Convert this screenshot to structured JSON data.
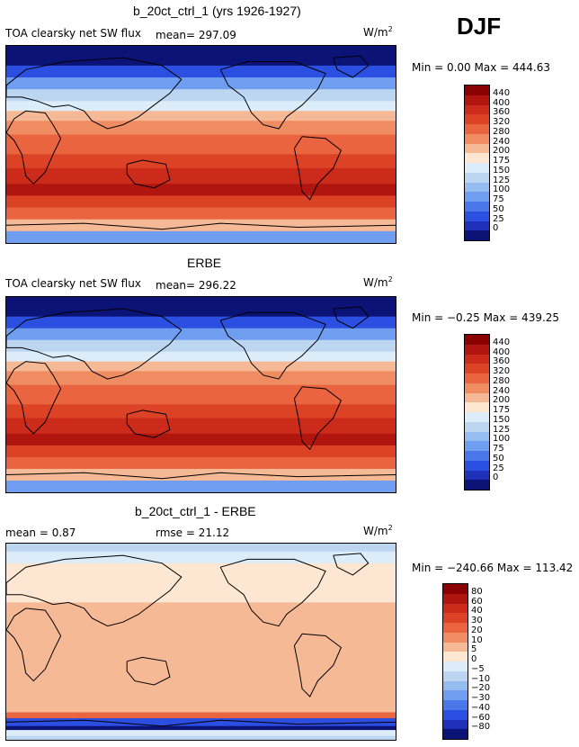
{
  "season": "DJF",
  "panels": [
    {
      "title": "b_20ct_ctrl_1 (yrs 1926-1927)",
      "variable": "TOA clearsky net SW flux",
      "mean_text": "mean= 297.09",
      "units_base": "W/m",
      "units_exp": "2",
      "min_max": "Min =   0.00 Max = 444.63",
      "levels": [
        "440",
        "400",
        "360",
        "320",
        "280",
        "240",
        "200",
        "175",
        "150",
        "125",
        "100",
        "75",
        "50",
        "25",
        "0"
      ],
      "colors": [
        "#8b0000",
        "#b0150f",
        "#cc2a1a",
        "#dc4225",
        "#ea6440",
        "#f08c62",
        "#f6b996",
        "#fde6d2",
        "#dcecf8",
        "#bcd6f2",
        "#95bdf0",
        "#6f9ef0",
        "#4a78ea",
        "#2b4fe0",
        "#1e31b8",
        "#0b1377"
      ]
    },
    {
      "title": "ERBE",
      "variable": "TOA clearsky net SW flux",
      "mean_text": "mean= 296.22",
      "units_base": "W/m",
      "units_exp": "2",
      "min_max": "Min =  −0.25 Max = 439.25",
      "levels": [
        "440",
        "400",
        "360",
        "320",
        "280",
        "240",
        "200",
        "175",
        "150",
        "125",
        "100",
        "75",
        "50",
        "25",
        "0"
      ],
      "colors": [
        "#8b0000",
        "#b0150f",
        "#cc2a1a",
        "#dc4225",
        "#ea6440",
        "#f08c62",
        "#f6b996",
        "#fde6d2",
        "#dcecf8",
        "#bcd6f2",
        "#95bdf0",
        "#6f9ef0",
        "#4a78ea",
        "#2b4fe0",
        "#1e31b8",
        "#0b1377"
      ]
    },
    {
      "title": "b_20ct_ctrl_1 - ERBE",
      "mean_text": "mean =    0.87",
      "rmse_text": "rmse =   21.12",
      "units_base": "W/m",
      "units_exp": "2",
      "min_max": "Min = −240.66 Max = 113.42",
      "levels": [
        "80",
        "60",
        "40",
        "30",
        "20",
        "10",
        "5",
        "0",
        "−5",
        "−10",
        "−20",
        "−30",
        "−40",
        "−60",
        "−80"
      ],
      "colors": [
        "#8b0000",
        "#b0150f",
        "#cc2a1a",
        "#dc4225",
        "#ea6440",
        "#f08c62",
        "#f6b996",
        "#fde6d2",
        "#dcecf8",
        "#bcd6f2",
        "#95bdf0",
        "#6f9ef0",
        "#4a78ea",
        "#2b4fe0",
        "#1e31b8",
        "#0b1377"
      ]
    }
  ]
}
